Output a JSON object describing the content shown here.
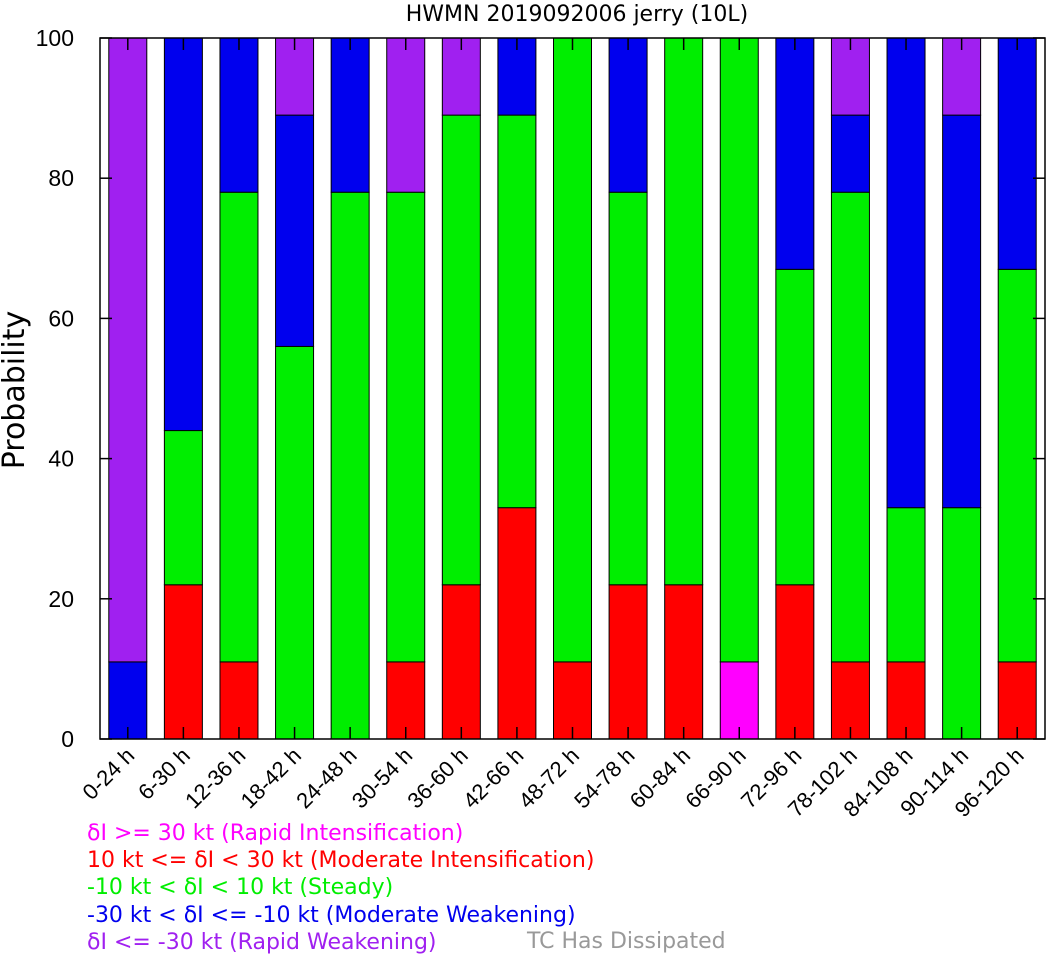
{
  "chart_data": {
    "type": "bar",
    "stacked": true,
    "title": "HWMN 2019092006 jerry (10L)",
    "ylabel": "Probability",
    "xlabel": "",
    "ylim": [
      0,
      100
    ],
    "yticks": [
      0,
      20,
      40,
      60,
      80,
      100
    ],
    "grid": false,
    "categories": [
      "0-24 h",
      "6-30 h",
      "12-36 h",
      "18-42 h",
      "24-48 h",
      "30-54 h",
      "36-60 h",
      "42-66 h",
      "48-72 h",
      "54-78 h",
      "60-84 h",
      "66-90 h",
      "72-96 h",
      "78-102 h",
      "84-108 h",
      "90-114 h",
      "96-120 h"
    ],
    "series": [
      {
        "name": "δI >= 30 kt (Rapid Intensification)",
        "color": "#ff00ff",
        "values": [
          0,
          0,
          0,
          0,
          0,
          0,
          0,
          0,
          0,
          0,
          0,
          11,
          0,
          0,
          0,
          0,
          0
        ]
      },
      {
        "name": "10 kt <= δI < 30 kt (Moderate Intensification)",
        "color": "#ff0000",
        "values": [
          0,
          22,
          11,
          0,
          0,
          11,
          22,
          33,
          11,
          22,
          22,
          0,
          22,
          11,
          11,
          0,
          11
        ]
      },
      {
        "name": "-10 kt < δI < 10 kt (Steady)",
        "color": "#00ee00",
        "values": [
          0,
          22,
          67,
          56,
          78,
          67,
          67,
          56,
          89,
          56,
          78,
          89,
          45,
          67,
          22,
          33,
          56
        ]
      },
      {
        "name": "-30 kt < δI <= -10 kt (Moderate Weakening)",
        "color": "#0000ee",
        "values": [
          11,
          56,
          22,
          33,
          22,
          0,
          0,
          11,
          0,
          22,
          0,
          0,
          33,
          11,
          67,
          56,
          33
        ]
      },
      {
        "name": "δI <= -30 kt (Rapid Weakening)",
        "color": "#a020f0",
        "values": [
          89,
          0,
          0,
          11,
          0,
          22,
          11,
          0,
          0,
          0,
          0,
          0,
          0,
          11,
          0,
          11,
          0
        ]
      }
    ],
    "legend": {
      "placement": "bottom-left",
      "entries": [
        {
          "text": "δI >= 30 kt (Rapid Intensification)",
          "color": "#ff00ff"
        },
        {
          "text": "10 kt <= δI < 30 kt (Moderate Intensification)",
          "color": "#ff0000"
        },
        {
          "text": "-10 kt < δI < 10 kt (Steady)",
          "color": "#00ee00"
        },
        {
          "text": "-30 kt < δI <= -10 kt (Moderate Weakening)",
          "color": "#0000ee"
        },
        {
          "text": "δI <= -30 kt (Rapid Weakening)",
          "color": "#a020f0"
        }
      ],
      "note": {
        "text": "TC Has Dissipated",
        "color": "#999999"
      }
    }
  }
}
